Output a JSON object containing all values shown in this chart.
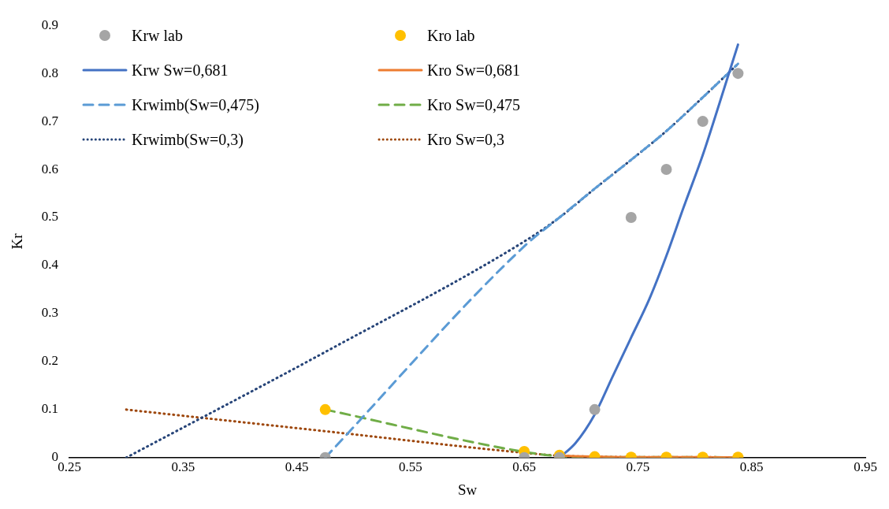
{
  "chart_data": {
    "type": "scatter",
    "xlabel": "Sw",
    "ylabel": "Kr",
    "xlim": [
      0.25,
      0.95
    ],
    "xticks": [
      0.25,
      0.35,
      0.45,
      0.55,
      0.65,
      0.75,
      0.85,
      0.95
    ],
    "ylim": [
      0,
      0.9
    ],
    "yticks": [
      0,
      0.1,
      0.2,
      0.3,
      0.4,
      0.5,
      0.6,
      0.7,
      0.8,
      0.9
    ],
    "grid": false,
    "legend": "top left",
    "series": [
      {
        "name": "Krw lab",
        "type": "scatter",
        "marker": "circle",
        "color": "#a5a5a5",
        "x": [
          0.475,
          0.65,
          0.681,
          0.712,
          0.744,
          0.775,
          0.807,
          0.838
        ],
        "values": [
          0,
          0,
          0,
          0.1,
          0.5,
          0.6,
          0.7,
          0.8
        ]
      },
      {
        "name": "Kro lab",
        "type": "scatter",
        "marker": "circle",
        "color": "#ffc000",
        "x": [
          0.475,
          0.65,
          0.681,
          0.712,
          0.744,
          0.775,
          0.807,
          0.838
        ],
        "values": [
          0.1,
          0.013,
          0.005,
          0.002,
          0.001,
          0.001,
          0.001,
          0.001
        ]
      },
      {
        "name": "Krw Sw=0,681",
        "type": "line",
        "line_style": "solid",
        "color": "#4472c4",
        "x": [
          0.681,
          0.695,
          0.712,
          0.728,
          0.744,
          0.76,
          0.775,
          0.79,
          0.807,
          0.822,
          0.838
        ],
        "values": [
          0,
          0.03,
          0.09,
          0.17,
          0.25,
          0.33,
          0.42,
          0.52,
          0.63,
          0.74,
          0.86
        ]
      },
      {
        "name": "Kro Sw=0,681",
        "type": "line",
        "line_style": "solid",
        "color": "#ed7d31",
        "x": [
          0.681,
          0.712,
          0.744,
          0.775,
          0.807,
          0.838
        ],
        "values": [
          0.004,
          0.002,
          0.001,
          0.001,
          0.001,
          0
        ]
      },
      {
        "name": "Krwimb(Sw=0,475)",
        "type": "line",
        "line_style": "dashed",
        "color": "#5b9bd5",
        "x": [
          0.475,
          0.65,
          0.681,
          0.712,
          0.744,
          0.775,
          0.807,
          0.838
        ],
        "values": [
          0,
          0.44,
          0.5,
          0.56,
          0.62,
          0.68,
          0.75,
          0.82
        ]
      },
      {
        "name": "Kro Sw=0,475",
        "type": "line",
        "line_style": "dashed",
        "color": "#70ad47",
        "x": [
          0.475,
          0.65,
          0.681,
          0.712,
          0.744,
          0.775,
          0.807,
          0.838
        ],
        "values": [
          0.1,
          0.012,
          0.003,
          0.001,
          0.001,
          0.001,
          0.001,
          0
        ]
      },
      {
        "name": "Krwimb(Sw=0,3)",
        "type": "line",
        "line_style": "dotted",
        "color": "#264478",
        "x": [
          0.3,
          0.475,
          0.65,
          0.681,
          0.712,
          0.744,
          0.775,
          0.807,
          0.838
        ],
        "values": [
          0,
          0.22,
          0.45,
          0.5,
          0.56,
          0.62,
          0.68,
          0.75,
          0.82
        ]
      },
      {
        "name": "Kro Sw=0,3",
        "type": "line",
        "line_style": "dotted",
        "color": "#9e480e",
        "x": [
          0.3,
          0.475,
          0.65,
          0.681,
          0.712,
          0.744,
          0.775,
          0.807,
          0.838
        ],
        "values": [
          0.1,
          0.055,
          0.01,
          0.004,
          0.002,
          0.001,
          0.001,
          0.001,
          0
        ]
      }
    ]
  }
}
